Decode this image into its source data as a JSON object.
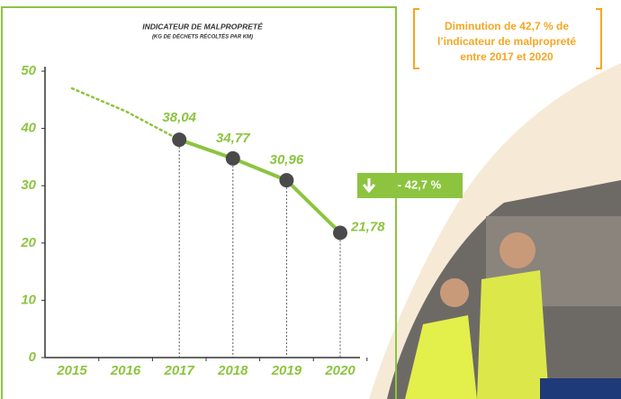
{
  "chart_data": {
    "type": "line",
    "title": "INDICATEUR DE MALPROPRETÉ",
    "subtitle": "(KG DE DÉCHETS RÉCOLTÉS PAR KM)",
    "categories": [
      "2015",
      "2016",
      "2017",
      "2018",
      "2019",
      "2020"
    ],
    "series": [
      {
        "color": "#8cc43f",
        "style": "dotted",
        "values": [
          47,
          43,
          38.04,
          null,
          null,
          null
        ]
      },
      {
        "color": "#8cc43f",
        "style": "solid",
        "markers": true,
        "values": [
          null,
          null,
          38.04,
          34.77,
          30.96,
          21.78
        ],
        "value_labels": [
          null,
          null,
          "38,04",
          "34,77",
          "30,96",
          "21,78"
        ]
      }
    ],
    "ylim": [
      0,
      50
    ],
    "yticks": [
      0,
      10,
      20,
      30,
      40,
      50
    ],
    "annotation": "- 42,7 %",
    "callout": [
      "Diminution de 42,7 % de",
      "l’indicateur de malpropreté",
      "entre 2017 et 2020"
    ]
  }
}
